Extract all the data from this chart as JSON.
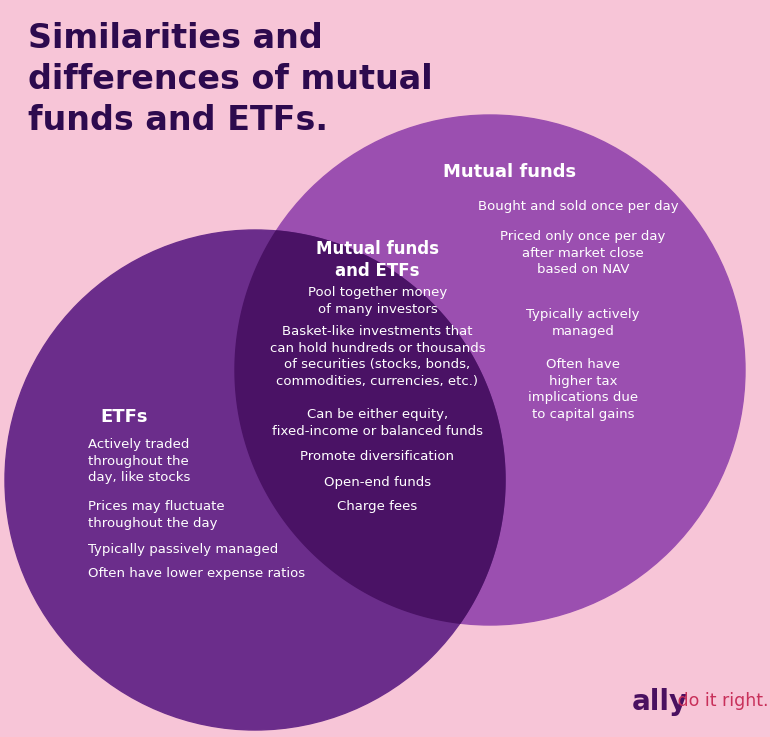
{
  "title": "Similarities and\ndifferences of mutual\nfunds and ETFs.",
  "title_color": "#2d0a4e",
  "bg_color": "#f7c5d7",
  "etf_circle_color": "#6b2d8b",
  "mutual_circle_color": "#9b4fb0",
  "overlap_color": "#4a1265",
  "etf_label": "ETFs",
  "mutual_label": "Mutual funds",
  "overlap_label": "Mutual funds\nand ETFs",
  "etf_items": [
    "Actively traded\nthroughout the\nday, like stocks",
    "Prices may fluctuate\nthroughout the day",
    "Typically passively managed",
    "Often have lower expense ratios"
  ],
  "mutual_items": [
    "Bought and sold once per day",
    "Priced only once per day\nafter market close\nbased on NAV",
    "Typically actively\nmanaged",
    "Often have\nhigher tax\nimplications due\nto capital gains"
  ],
  "shared_items": [
    "Pool together money\nof many investors",
    "Basket-like investments that\ncan hold hundreds or thousands\nof securities (stocks, bonds,\ncommodities, currencies, etc.)",
    "Can be either equity,\nfixed-income or balanced funds",
    "Promote diversification",
    "Open-end funds",
    "Charge fees"
  ],
  "text_white": "#ffffff",
  "text_dark": "#2d0a4e",
  "ally_bold_color": "#4a1060",
  "ally_tag_color": "#c8305a",
  "logo_text": "ally",
  "logo_tagline": " do it right."
}
